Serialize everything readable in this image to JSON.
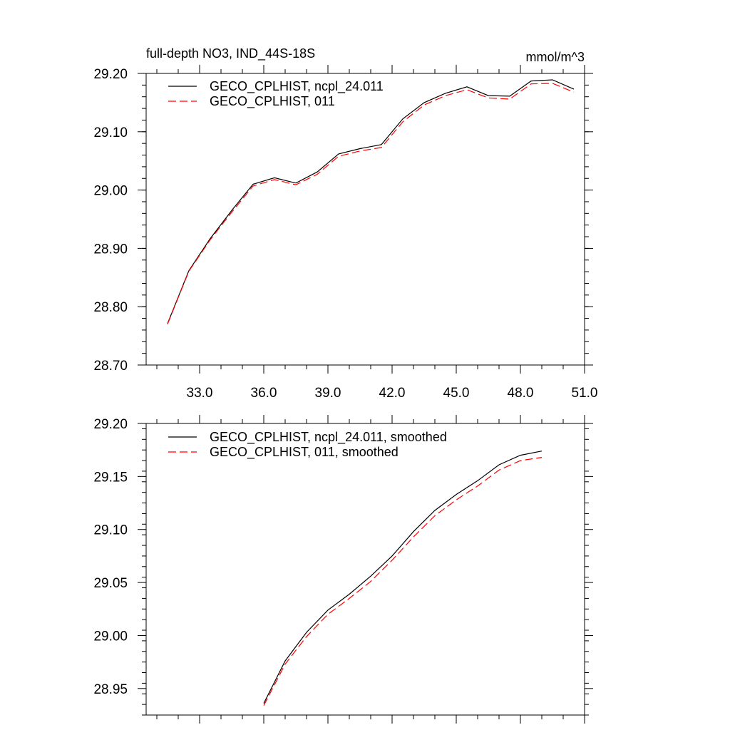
{
  "chart_data": [
    {
      "type": "line",
      "title": "full-depth NO3, IND_44S-18S",
      "units": "mmol/m^3",
      "xlabel": "",
      "ylabel": "",
      "xlim": [
        30.5,
        51.0
      ],
      "ylim": [
        28.7,
        29.2
      ],
      "x_ticks": [
        33.0,
        36.0,
        39.0,
        42.0,
        45.0,
        48.0,
        51.0
      ],
      "x_tick_labels": [
        "33.0",
        "36.0",
        "39.0",
        "42.0",
        "45.0",
        "48.0",
        "51.0"
      ],
      "y_ticks": [
        28.7,
        28.8,
        28.9,
        29.0,
        29.1,
        29.2
      ],
      "y_tick_labels": [
        "28.70",
        "28.80",
        "28.90",
        "29.00",
        "29.10",
        "29.20"
      ],
      "grid": false,
      "legend_position": "top-left",
      "series": [
        {
          "name": "GECO_CPLHIST, ncpl_24.011",
          "color": "#000000",
          "dash": "solid",
          "x": [
            31.5,
            32.5,
            33.5,
            34.5,
            35.5,
            36.5,
            37.5,
            38.5,
            39.5,
            40.5,
            41.5,
            42.5,
            43.5,
            44.5,
            45.5,
            46.5,
            47.5,
            48.5,
            49.5,
            50.5
          ],
          "y": [
            28.771,
            28.862,
            28.917,
            28.965,
            29.01,
            29.021,
            29.012,
            29.031,
            29.062,
            29.071,
            29.078,
            29.122,
            29.15,
            29.166,
            29.177,
            29.162,
            29.161,
            29.187,
            29.189,
            29.173
          ]
        },
        {
          "name": "GECO_CPLHIST, 011",
          "color": "#ff0000",
          "dash": "dashed",
          "x": [
            31.5,
            32.5,
            33.5,
            34.5,
            35.5,
            36.5,
            37.5,
            38.5,
            39.5,
            40.5,
            41.5,
            42.5,
            43.5,
            44.5,
            45.5,
            46.5,
            47.5,
            48.5,
            49.5,
            50.5
          ],
          "y": [
            28.77,
            28.861,
            28.915,
            28.962,
            29.007,
            29.018,
            29.009,
            29.027,
            29.058,
            29.067,
            29.073,
            29.117,
            29.146,
            29.162,
            29.172,
            29.158,
            29.156,
            29.182,
            29.183,
            29.168
          ]
        }
      ]
    },
    {
      "type": "line",
      "title": "",
      "xlabel": "",
      "ylabel": "",
      "xlim": [
        30.5,
        51.0
      ],
      "ylim": [
        28.925,
        29.2
      ],
      "x_ticks": [
        33.0,
        36.0,
        39.0,
        42.0,
        45.0,
        48.0,
        51.0
      ],
      "y_ticks": [
        28.95,
        29.0,
        29.05,
        29.1,
        29.15,
        29.2
      ],
      "y_tick_labels": [
        "28.95",
        "29.00",
        "29.05",
        "29.10",
        "29.15",
        "29.20"
      ],
      "grid": false,
      "legend_position": "top-left",
      "series": [
        {
          "name": "GECO_CPLHIST, ncpl_24.011, smoothed",
          "color": "#000000",
          "dash": "solid",
          "x": [
            36.0,
            37.0,
            38.0,
            39.0,
            40.0,
            41.0,
            42.0,
            43.0,
            44.0,
            45.0,
            46.0,
            47.0,
            48.0,
            49.0,
            50.0
          ],
          "y": [
            28.936,
            28.976,
            29.003,
            29.024,
            29.039,
            29.056,
            29.075,
            29.098,
            29.118,
            29.133,
            29.146,
            29.161,
            29.17,
            29.174,
            null
          ]
        },
        {
          "name": "GECO_CPLHIST, 011, smoothed",
          "color": "#ff0000",
          "dash": "dashed",
          "x": [
            36.0,
            37.0,
            38.0,
            39.0,
            40.0,
            41.0,
            42.0,
            43.0,
            44.0,
            45.0,
            46.0,
            47.0,
            48.0,
            49.0,
            50.0
          ],
          "y": [
            28.934,
            28.973,
            28.999,
            29.02,
            29.035,
            29.051,
            29.071,
            29.093,
            29.113,
            29.128,
            29.141,
            29.156,
            29.165,
            29.168,
            null
          ]
        }
      ]
    }
  ]
}
